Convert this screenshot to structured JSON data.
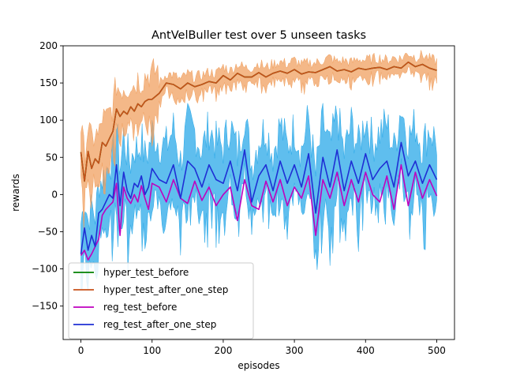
{
  "chart_data": {
    "type": "line",
    "title": "AntVelBuller test over 5 unseen tasks",
    "xlabel": "episodes",
    "ylabel": "rewards",
    "xlim": [
      -25,
      525
    ],
    "ylim": [
      -195,
      200
    ],
    "xticks": [
      0,
      100,
      200,
      300,
      400,
      500
    ],
    "yticks": [
      -150,
      -100,
      -50,
      0,
      50,
      100,
      150,
      200
    ],
    "grid": false,
    "legend_position": "lower-left",
    "series": [
      {
        "name": "hyper_test_before",
        "color": "#008000",
        "x": [
          0,
          5,
          10,
          15,
          20,
          25,
          30,
          35,
          40,
          45,
          50,
          55,
          60,
          65,
          70,
          75,
          80,
          85,
          90,
          95,
          100,
          110,
          120,
          130,
          140,
          150,
          160,
          170,
          180,
          190,
          200,
          210,
          220,
          230,
          240,
          250,
          260,
          270,
          280,
          290,
          300,
          310,
          320,
          330,
          340,
          350,
          360,
          370,
          380,
          390,
          400,
          410,
          420,
          430,
          440,
          450,
          460,
          470,
          480,
          490,
          500
        ],
        "values": [
          57,
          18,
          58,
          35,
          48,
          42,
          70,
          65,
          75,
          85,
          115,
          105,
          112,
          108,
          118,
          112,
          122,
          118,
          125,
          128,
          128,
          136,
          150,
          148,
          142,
          150,
          145,
          148,
          152,
          150,
          160,
          154,
          163,
          158,
          158,
          164,
          158,
          163,
          166,
          163,
          168,
          162,
          165,
          164,
          168,
          172,
          166,
          168,
          165,
          170,
          168,
          170,
          171,
          168,
          172,
          170,
          178,
          172,
          175,
          170,
          167
        ]
      },
      {
        "name": "hyper_test_after_one_step",
        "color": "#c8501a",
        "band_color": "#f0a060",
        "x": [
          0,
          5,
          10,
          15,
          20,
          25,
          30,
          35,
          40,
          45,
          50,
          55,
          60,
          65,
          70,
          75,
          80,
          85,
          90,
          95,
          100,
          110,
          120,
          130,
          140,
          150,
          160,
          170,
          180,
          190,
          200,
          210,
          220,
          230,
          240,
          250,
          260,
          270,
          280,
          290,
          300,
          310,
          320,
          330,
          340,
          350,
          360,
          370,
          380,
          390,
          400,
          410,
          420,
          430,
          440,
          450,
          460,
          470,
          480,
          490,
          500
        ],
        "values": [
          57,
          18,
          58,
          35,
          48,
          42,
          70,
          65,
          75,
          85,
          115,
          105,
          112,
          108,
          118,
          112,
          122,
          118,
          125,
          128,
          128,
          136,
          150,
          148,
          142,
          150,
          145,
          148,
          152,
          150,
          160,
          154,
          163,
          158,
          158,
          164,
          158,
          163,
          166,
          163,
          168,
          162,
          165,
          164,
          168,
          172,
          166,
          168,
          165,
          170,
          168,
          170,
          171,
          168,
          172,
          170,
          178,
          172,
          175,
          170,
          167
        ]
      },
      {
        "name": "reg_test_before",
        "color": "#bf00bf",
        "x": [
          0,
          5,
          10,
          15,
          20,
          25,
          30,
          35,
          40,
          45,
          50,
          55,
          60,
          65,
          70,
          75,
          80,
          85,
          90,
          95,
          100,
          110,
          120,
          130,
          140,
          150,
          160,
          170,
          180,
          190,
          200,
          210,
          220,
          230,
          240,
          250,
          260,
          270,
          280,
          290,
          300,
          310,
          320,
          330,
          340,
          350,
          360,
          370,
          380,
          390,
          400,
          410,
          420,
          430,
          440,
          450,
          460,
          470,
          480,
          490,
          500
        ],
        "values": [
          -82,
          -75,
          -88,
          -80,
          -70,
          -60,
          -28,
          -20,
          -15,
          -10,
          15,
          -55,
          10,
          -5,
          -12,
          0,
          -10,
          12,
          -5,
          -20,
          15,
          10,
          -10,
          20,
          -5,
          -12,
          18,
          -8,
          10,
          -15,
          0,
          10,
          -35,
          20,
          -15,
          -20,
          18,
          -10,
          20,
          -15,
          10,
          -5,
          25,
          -55,
          20,
          -5,
          30,
          -15,
          20,
          -10,
          30,
          0,
          -10,
          25,
          -20,
          40,
          -15,
          30,
          -5,
          20,
          -2
        ]
      },
      {
        "name": "reg_test_after_one_step",
        "color": "#1f2fd4",
        "band_color": "#29a8e8",
        "x": [
          0,
          5,
          10,
          15,
          20,
          25,
          30,
          35,
          40,
          45,
          50,
          55,
          60,
          65,
          70,
          75,
          80,
          85,
          90,
          95,
          100,
          110,
          120,
          130,
          140,
          150,
          160,
          170,
          180,
          190,
          200,
          210,
          220,
          230,
          240,
          250,
          260,
          270,
          280,
          290,
          300,
          310,
          320,
          330,
          340,
          350,
          360,
          370,
          380,
          390,
          400,
          410,
          420,
          430,
          440,
          450,
          460,
          470,
          480,
          490,
          500
        ],
        "values": [
          -80,
          -45,
          -75,
          -55,
          -70,
          -25,
          -20,
          -10,
          0,
          -5,
          40,
          -15,
          30,
          5,
          -5,
          15,
          10,
          25,
          0,
          10,
          35,
          20,
          15,
          40,
          -5,
          45,
          35,
          10,
          40,
          20,
          15,
          45,
          5,
          60,
          -10,
          25,
          40,
          5,
          45,
          15,
          40,
          10,
          55,
          -25,
          50,
          10,
          60,
          5,
          45,
          15,
          55,
          20,
          35,
          45,
          10,
          70,
          25,
          45,
          15,
          40,
          20
        ]
      }
    ]
  }
}
